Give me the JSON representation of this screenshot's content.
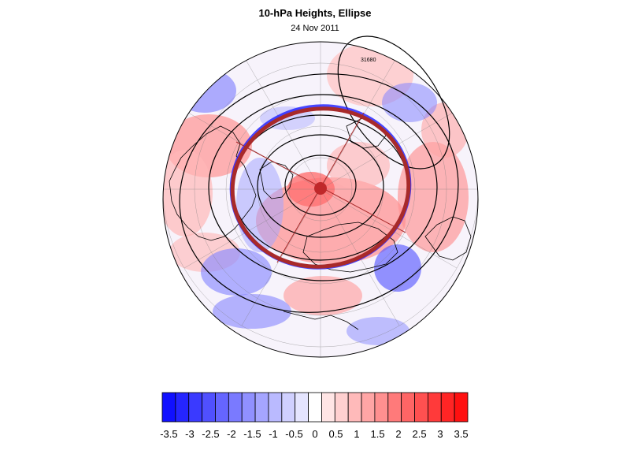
{
  "title": "10-hPa Heights, Ellipse",
  "subtitle": "24 Nov 2011",
  "map": {
    "projection": "polar-stereographic",
    "hemisphere": "northern",
    "contour_label": "31680",
    "colors": {
      "ellipse": "#a82a2a",
      "ellipse_center": "#c0282a",
      "contour": "#000000",
      "coastline": "#000000"
    }
  },
  "colorbar": {
    "colors": [
      "#1010ff",
      "#2525ff",
      "#3a3aff",
      "#5050ff",
      "#6565ff",
      "#7a7aff",
      "#9090ff",
      "#a5a5ff",
      "#babaff",
      "#d0d0ff",
      "#e5e5ff",
      "#ffffff",
      "#ffe5e5",
      "#ffd0d0",
      "#ffbaba",
      "#ffa5a5",
      "#ff9090",
      "#ff7a7a",
      "#ff6565",
      "#ff5050",
      "#ff3a3a",
      "#ff2525",
      "#ff1010"
    ],
    "tick_labels": [
      "-3.5",
      "-3",
      "-2.5",
      "-2",
      "-1.5",
      "-1",
      "-0.5",
      "0",
      "0.5",
      "1",
      "1.5",
      "2",
      "2.5",
      "3",
      "3.5"
    ]
  }
}
